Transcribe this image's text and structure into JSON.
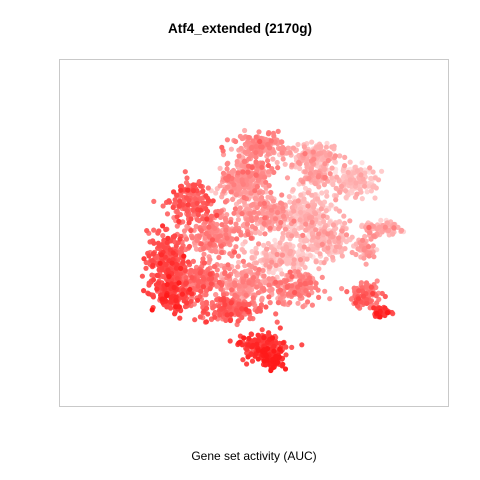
{
  "chart_data": {
    "type": "scatter",
    "title": "Atf4_extended (2170g)",
    "xlabel": "Gene set activity (AUC)",
    "ylabel": "",
    "grid": false,
    "legend": "none",
    "axes_ticks_shown": false,
    "color_scale": {
      "low": "#ffe4e4",
      "high": "#ff1a1a"
    },
    "clusters": [
      {
        "cx": 0.03,
        "cy": 0.55,
        "rx": 0.13,
        "ry": 0.07,
        "n": 150,
        "activity": 0.42
      },
      {
        "cx": -0.03,
        "cy": 0.36,
        "rx": 0.12,
        "ry": 0.1,
        "n": 200,
        "activity": 0.38
      },
      {
        "cx": 0.32,
        "cy": 0.48,
        "rx": 0.14,
        "ry": 0.07,
        "n": 180,
        "activity": 0.22
      },
      {
        "cx": 0.55,
        "cy": 0.32,
        "rx": 0.11,
        "ry": 0.09,
        "n": 180,
        "activity": 0.12
      },
      {
        "cx": -0.35,
        "cy": 0.18,
        "rx": 0.1,
        "ry": 0.13,
        "n": 170,
        "activity": 0.62
      },
      {
        "cx": -0.22,
        "cy": -0.02,
        "rx": 0.13,
        "ry": 0.13,
        "n": 220,
        "activity": 0.42
      },
      {
        "cx": -0.48,
        "cy": -0.18,
        "rx": 0.1,
        "ry": 0.16,
        "n": 260,
        "activity": 0.7
      },
      {
        "cx": -0.45,
        "cy": -0.4,
        "rx": 0.1,
        "ry": 0.08,
        "n": 140,
        "activity": 0.78
      },
      {
        "cx": -0.3,
        "cy": -0.3,
        "rx": 0.1,
        "ry": 0.1,
        "n": 160,
        "activity": 0.55
      },
      {
        "cx": 0.05,
        "cy": 0.12,
        "rx": 0.13,
        "ry": 0.12,
        "n": 220,
        "activity": 0.32
      },
      {
        "cx": 0.3,
        "cy": 0.1,
        "rx": 0.14,
        "ry": 0.14,
        "n": 240,
        "activity": 0.18
      },
      {
        "cx": 0.15,
        "cy": -0.15,
        "rx": 0.16,
        "ry": 0.1,
        "n": 220,
        "activity": 0.15
      },
      {
        "cx": 0.42,
        "cy": -0.05,
        "rx": 0.1,
        "ry": 0.1,
        "n": 150,
        "activity": 0.2
      },
      {
        "cx": -0.05,
        "cy": -0.32,
        "rx": 0.14,
        "ry": 0.1,
        "n": 200,
        "activity": 0.38
      },
      {
        "cx": 0.22,
        "cy": -0.35,
        "rx": 0.12,
        "ry": 0.09,
        "n": 160,
        "activity": 0.42
      },
      {
        "cx": -0.12,
        "cy": -0.48,
        "rx": 0.16,
        "ry": 0.07,
        "n": 180,
        "activity": 0.62
      },
      {
        "cx": 0.05,
        "cy": -0.72,
        "rx": 0.11,
        "ry": 0.08,
        "n": 200,
        "activity": 0.78
      },
      {
        "cx": 0.1,
        "cy": -0.8,
        "rx": 0.06,
        "ry": 0.04,
        "n": 60,
        "activity": 0.92
      },
      {
        "cx": 0.7,
        "cy": 0.02,
        "rx": 0.1,
        "ry": 0.04,
        "n": 80,
        "activity": 0.25
      },
      {
        "cx": 0.62,
        "cy": -0.1,
        "rx": 0.05,
        "ry": 0.06,
        "n": 50,
        "activity": 0.3
      },
      {
        "cx": 0.62,
        "cy": -0.4,
        "rx": 0.08,
        "ry": 0.07,
        "n": 100,
        "activity": 0.55
      },
      {
        "cx": 0.7,
        "cy": -0.5,
        "rx": 0.05,
        "ry": 0.03,
        "n": 40,
        "activity": 0.85
      },
      {
        "cx": -0.1,
        "cy": 0.3,
        "rx": 0.08,
        "ry": 0.08,
        "n": 100,
        "activity": 0.3
      },
      {
        "cx": 0.35,
        "cy": 0.35,
        "rx": 0.08,
        "ry": 0.05,
        "n": 80,
        "activity": 0.25
      }
    ]
  }
}
